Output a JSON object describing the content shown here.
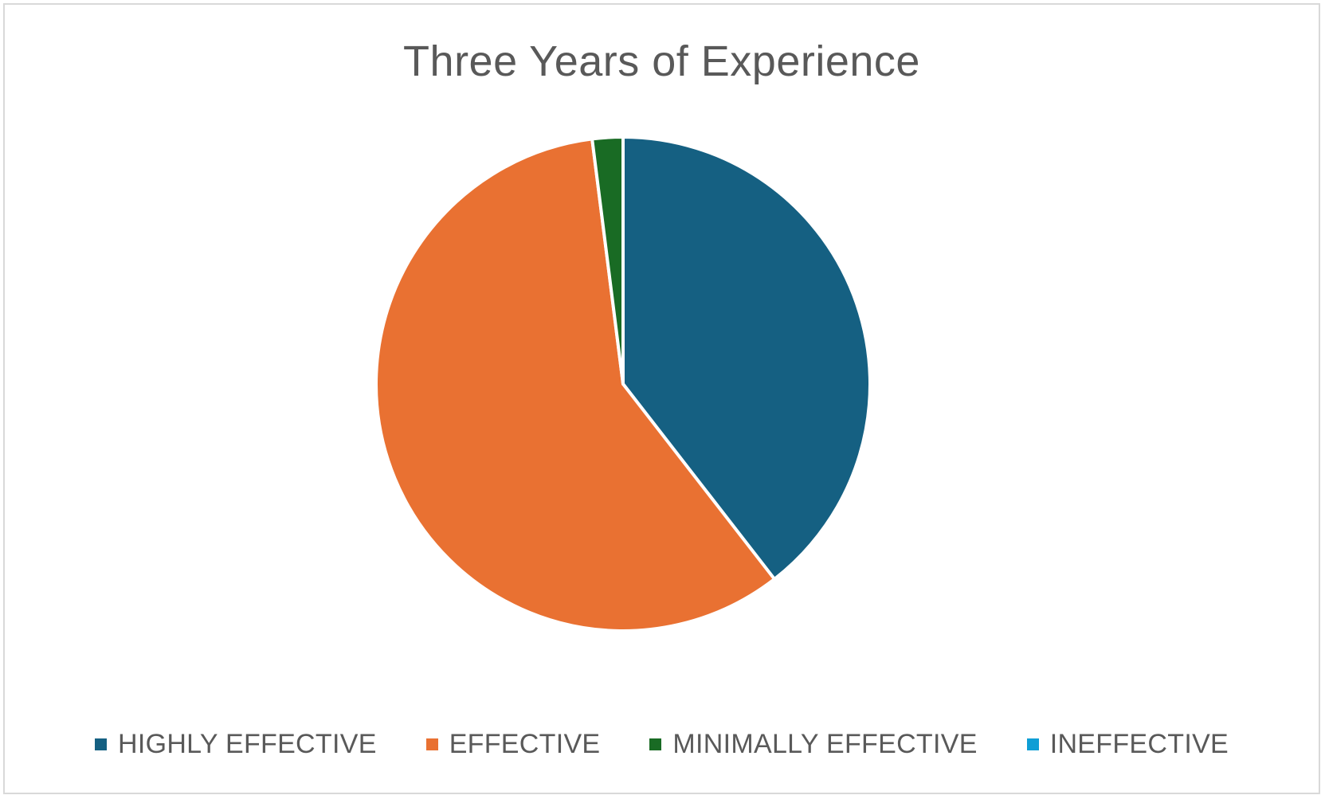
{
  "chart_data": {
    "type": "pie",
    "title": "Three Years of Experience",
    "categories": [
      "HIGHLY EFFECTIVE",
      "EFFECTIVE",
      "MINIMALLY EFFECTIVE",
      "INEFFECTIVE"
    ],
    "values": [
      39.5,
      58.5,
      2.0,
      0.0
    ],
    "colors": [
      "#156082",
      "#e97132",
      "#196b24",
      "#0f9ed5"
    ],
    "legend_position": "bottom",
    "start_angle": "12 o'clock",
    "direction": "clockwise"
  }
}
